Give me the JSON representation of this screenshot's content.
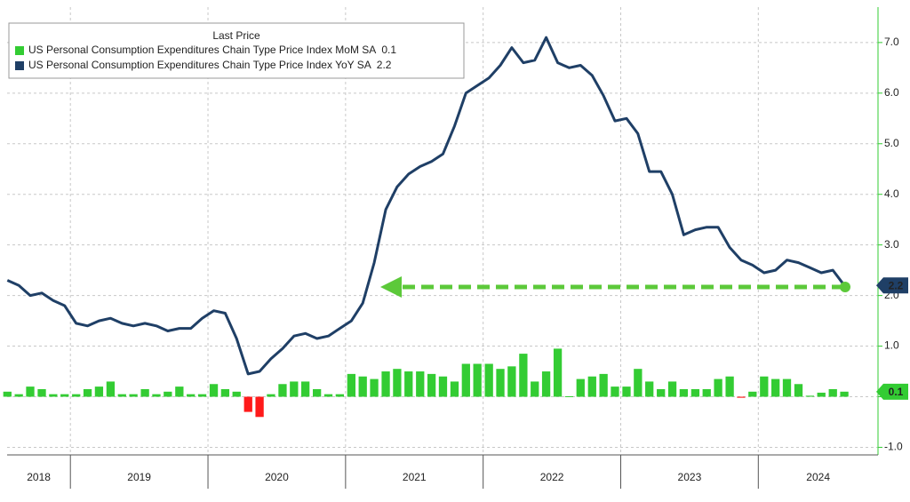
{
  "chart_data": {
    "type": "combo",
    "legend_title": "Last Price",
    "x": [
      2018.542,
      2018.625,
      2018.708,
      2018.792,
      2018.875,
      2018.958,
      2019.042,
      2019.125,
      2019.208,
      2019.292,
      2019.375,
      2019.458,
      2019.542,
      2019.625,
      2019.708,
      2019.792,
      2019.875,
      2019.958,
      2020.042,
      2020.125,
      2020.208,
      2020.292,
      2020.375,
      2020.458,
      2020.542,
      2020.625,
      2020.708,
      2020.792,
      2020.875,
      2020.958,
      2021.042,
      2021.125,
      2021.208,
      2021.292,
      2021.375,
      2021.458,
      2021.542,
      2021.625,
      2021.708,
      2021.792,
      2021.875,
      2021.958,
      2022.042,
      2022.125,
      2022.208,
      2022.292,
      2022.375,
      2022.458,
      2022.542,
      2022.625,
      2022.708,
      2022.792,
      2022.875,
      2022.958,
      2023.042,
      2023.125,
      2023.208,
      2023.292,
      2023.375,
      2023.458,
      2023.542,
      2023.625,
      2023.708,
      2023.792,
      2023.875,
      2023.958,
      2024.042,
      2024.125,
      2024.208,
      2024.292,
      2024.375,
      2024.458,
      2024.542,
      2024.625
    ],
    "xlim": [
      2018.54,
      2024.87
    ],
    "xticks": [
      2019,
      2020,
      2021,
      2022,
      2023,
      2024
    ],
    "year_labels": [
      2018,
      2019,
      2020,
      2021,
      2022,
      2023,
      2024
    ],
    "ylim": [
      -1.15,
      7.7
    ],
    "yticks": [
      {
        "value": -1,
        "label": "-1.0"
      },
      {
        "value": 0,
        "label": "0.0"
      },
      {
        "value": 1,
        "label": "1.0"
      },
      {
        "value": 2,
        "label": "2.0"
      },
      {
        "value": 3,
        "label": "3.0"
      },
      {
        "value": 4,
        "label": "4.0"
      },
      {
        "value": 5,
        "label": "5.0"
      },
      {
        "value": 6,
        "label": "6.0"
      },
      {
        "value": 7,
        "label": "7.0"
      }
    ],
    "grid": true,
    "axis_color": "#33cc33",
    "series": [
      {
        "name": "US Personal Consumption Expenditures Chain Type Price Index MoM SA",
        "type": "bar",
        "color": "#33cc33",
        "negative_color": "#ff1a1a",
        "values": [
          0.1,
          0.05,
          0.2,
          0.15,
          0.05,
          0.05,
          0.05,
          0.15,
          0.2,
          0.3,
          0.05,
          0.05,
          0.15,
          0.05,
          0.1,
          0.2,
          0.05,
          0.05,
          0.25,
          0.15,
          0.1,
          -0.3,
          -0.4,
          0.05,
          0.25,
          0.3,
          0.3,
          0.15,
          0.05,
          0.05,
          0.45,
          0.4,
          0.35,
          0.5,
          0.55,
          0.5,
          0.5,
          0.45,
          0.4,
          0.3,
          0.65,
          0.65,
          0.65,
          0.55,
          0.6,
          0.85,
          0.3,
          0.5,
          0.95,
          0.01,
          0.35,
          0.4,
          0.45,
          0.2,
          0.2,
          0.55,
          0.3,
          0.15,
          0.3,
          0.15,
          0.15,
          0.15,
          0.35,
          0.4,
          -0.02,
          0.1,
          0.4,
          0.35,
          0.35,
          0.25,
          0.02,
          0.08,
          0.15,
          0.1
        ]
      },
      {
        "name": "US Personal Consumption Expenditures Chain Type Price Index YoY SA",
        "type": "line",
        "color": "#1f3f66",
        "values": [
          2.3,
          2.2,
          2.0,
          2.05,
          1.9,
          1.8,
          1.45,
          1.4,
          1.5,
          1.55,
          1.45,
          1.4,
          1.45,
          1.4,
          1.3,
          1.35,
          1.35,
          1.55,
          1.7,
          1.65,
          1.15,
          0.45,
          0.5,
          0.75,
          0.95,
          1.2,
          1.25,
          1.15,
          1.2,
          1.35,
          1.5,
          1.85,
          2.65,
          3.7,
          4.15,
          4.4,
          4.55,
          4.65,
          4.8,
          5.35,
          6.0,
          6.15,
          6.3,
          6.55,
          6.9,
          6.6,
          6.65,
          7.1,
          6.6,
          6.5,
          6.55,
          6.35,
          5.95,
          5.45,
          5.5,
          5.2,
          4.45,
          4.45,
          4.0,
          3.2,
          3.3,
          3.35,
          3.35,
          2.95,
          2.7,
          2.6,
          2.45,
          2.5,
          2.7,
          2.65,
          2.55,
          2.45,
          2.5,
          2.2
        ]
      }
    ]
  }
}
